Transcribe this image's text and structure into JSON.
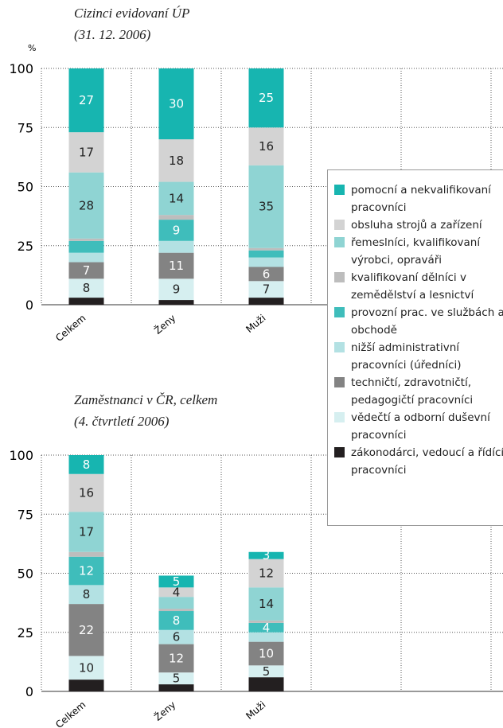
{
  "chart_data": [
    {
      "type": "bar",
      "stacked": true,
      "title": "Cizinci evidovaní ÚP",
      "subtitle": "(31. 12. 2006)",
      "ylabel": "%",
      "categories": [
        "Celkem",
        "Ženy",
        "Muži"
      ],
      "ylim": [
        0,
        100
      ],
      "yticks": [
        0,
        25,
        50,
        75,
        100
      ],
      "grid": true,
      "series": [
        {
          "name": "zákonodárci, vedoucí a řídící pracovníci",
          "color": "#231f20",
          "values": [
            3,
            2,
            3
          ],
          "value_labels": [
            null,
            null,
            null
          ]
        },
        {
          "name": "vědečtí a odborní duševní pracovníci",
          "color": "#d6eff0",
          "values": [
            8,
            9,
            7
          ],
          "value_labels": [
            "8",
            "9",
            "7"
          ]
        },
        {
          "name": "techničtí, zdravotničtí, pedagogičtí pracovníci",
          "color": "#838383",
          "values": [
            7,
            11,
            6
          ],
          "value_labels": [
            "7",
            "11",
            "6"
          ]
        },
        {
          "name": "nižší administrativní pracovníci (úředníci)",
          "color": "#b3e1e3",
          "values": [
            4,
            5,
            4
          ],
          "value_labels": [
            null,
            null,
            null
          ]
        },
        {
          "name": "provozní prac. ve službách a obchodě",
          "color": "#3fbdbb",
          "values": [
            5,
            9,
            3
          ],
          "value_labels": [
            null,
            "9",
            null
          ]
        },
        {
          "name": "kvalifikovaní dělníci v zemědělství a lesnictví",
          "color": "#bdbdbd",
          "values": [
            1,
            2,
            1
          ],
          "value_labels": [
            null,
            null,
            null
          ]
        },
        {
          "name": "řemeslníci, kvalifikovaní výrobci, opraváři",
          "color": "#8fd4d3",
          "values": [
            28,
            14,
            35
          ],
          "value_labels": [
            "28",
            "14",
            "35"
          ]
        },
        {
          "name": "obsluha strojů a zařízení",
          "color": "#d3d3d3",
          "values": [
            17,
            18,
            16
          ],
          "value_labels": [
            "17",
            "18",
            "16"
          ]
        },
        {
          "name": "pomocní a nekvalifikovaní pracovníci",
          "color": "#17b5b0",
          "values": [
            27,
            30,
            25
          ],
          "value_labels": [
            "27",
            "30",
            "25"
          ]
        }
      ]
    },
    {
      "type": "bar",
      "stacked": true,
      "title": "Zaměstnanci v ČR, celkem",
      "subtitle": "(4. čtvrtletí 2006)",
      "categories": [
        "Celkem",
        "Ženy",
        "Muži"
      ],
      "ylim": [
        0,
        100
      ],
      "yticks": [
        0,
        25,
        50,
        75,
        100
      ],
      "grid": true,
      "series": [
        {
          "values": [
            5,
            3,
            6
          ],
          "value_labels": [
            null,
            null,
            null
          ]
        },
        {
          "values": [
            10,
            5,
            5
          ],
          "value_labels": [
            "10",
            "5",
            "5"
          ]
        },
        {
          "values": [
            22,
            12,
            10
          ],
          "value_labels": [
            "22",
            "12",
            "10"
          ]
        },
        {
          "values": [
            8,
            6,
            4
          ],
          "value_labels": [
            "8",
            "6",
            null
          ]
        },
        {
          "values": [
            12,
            8,
            4
          ],
          "value_labels": [
            "12",
            "8",
            "4"
          ]
        },
        {
          "values": [
            2,
            1,
            1
          ],
          "value_labels": [
            null,
            null,
            null
          ]
        },
        {
          "values": [
            17,
            5,
            14
          ],
          "value_labels": [
            "17",
            null,
            "14"
          ]
        },
        {
          "values": [
            16,
            4,
            12
          ],
          "value_labels": [
            "16",
            "4",
            "12"
          ]
        },
        {
          "values": [
            8,
            5,
            3
          ],
          "value_labels": [
            "8",
            "5",
            "3"
          ]
        }
      ]
    }
  ]
}
